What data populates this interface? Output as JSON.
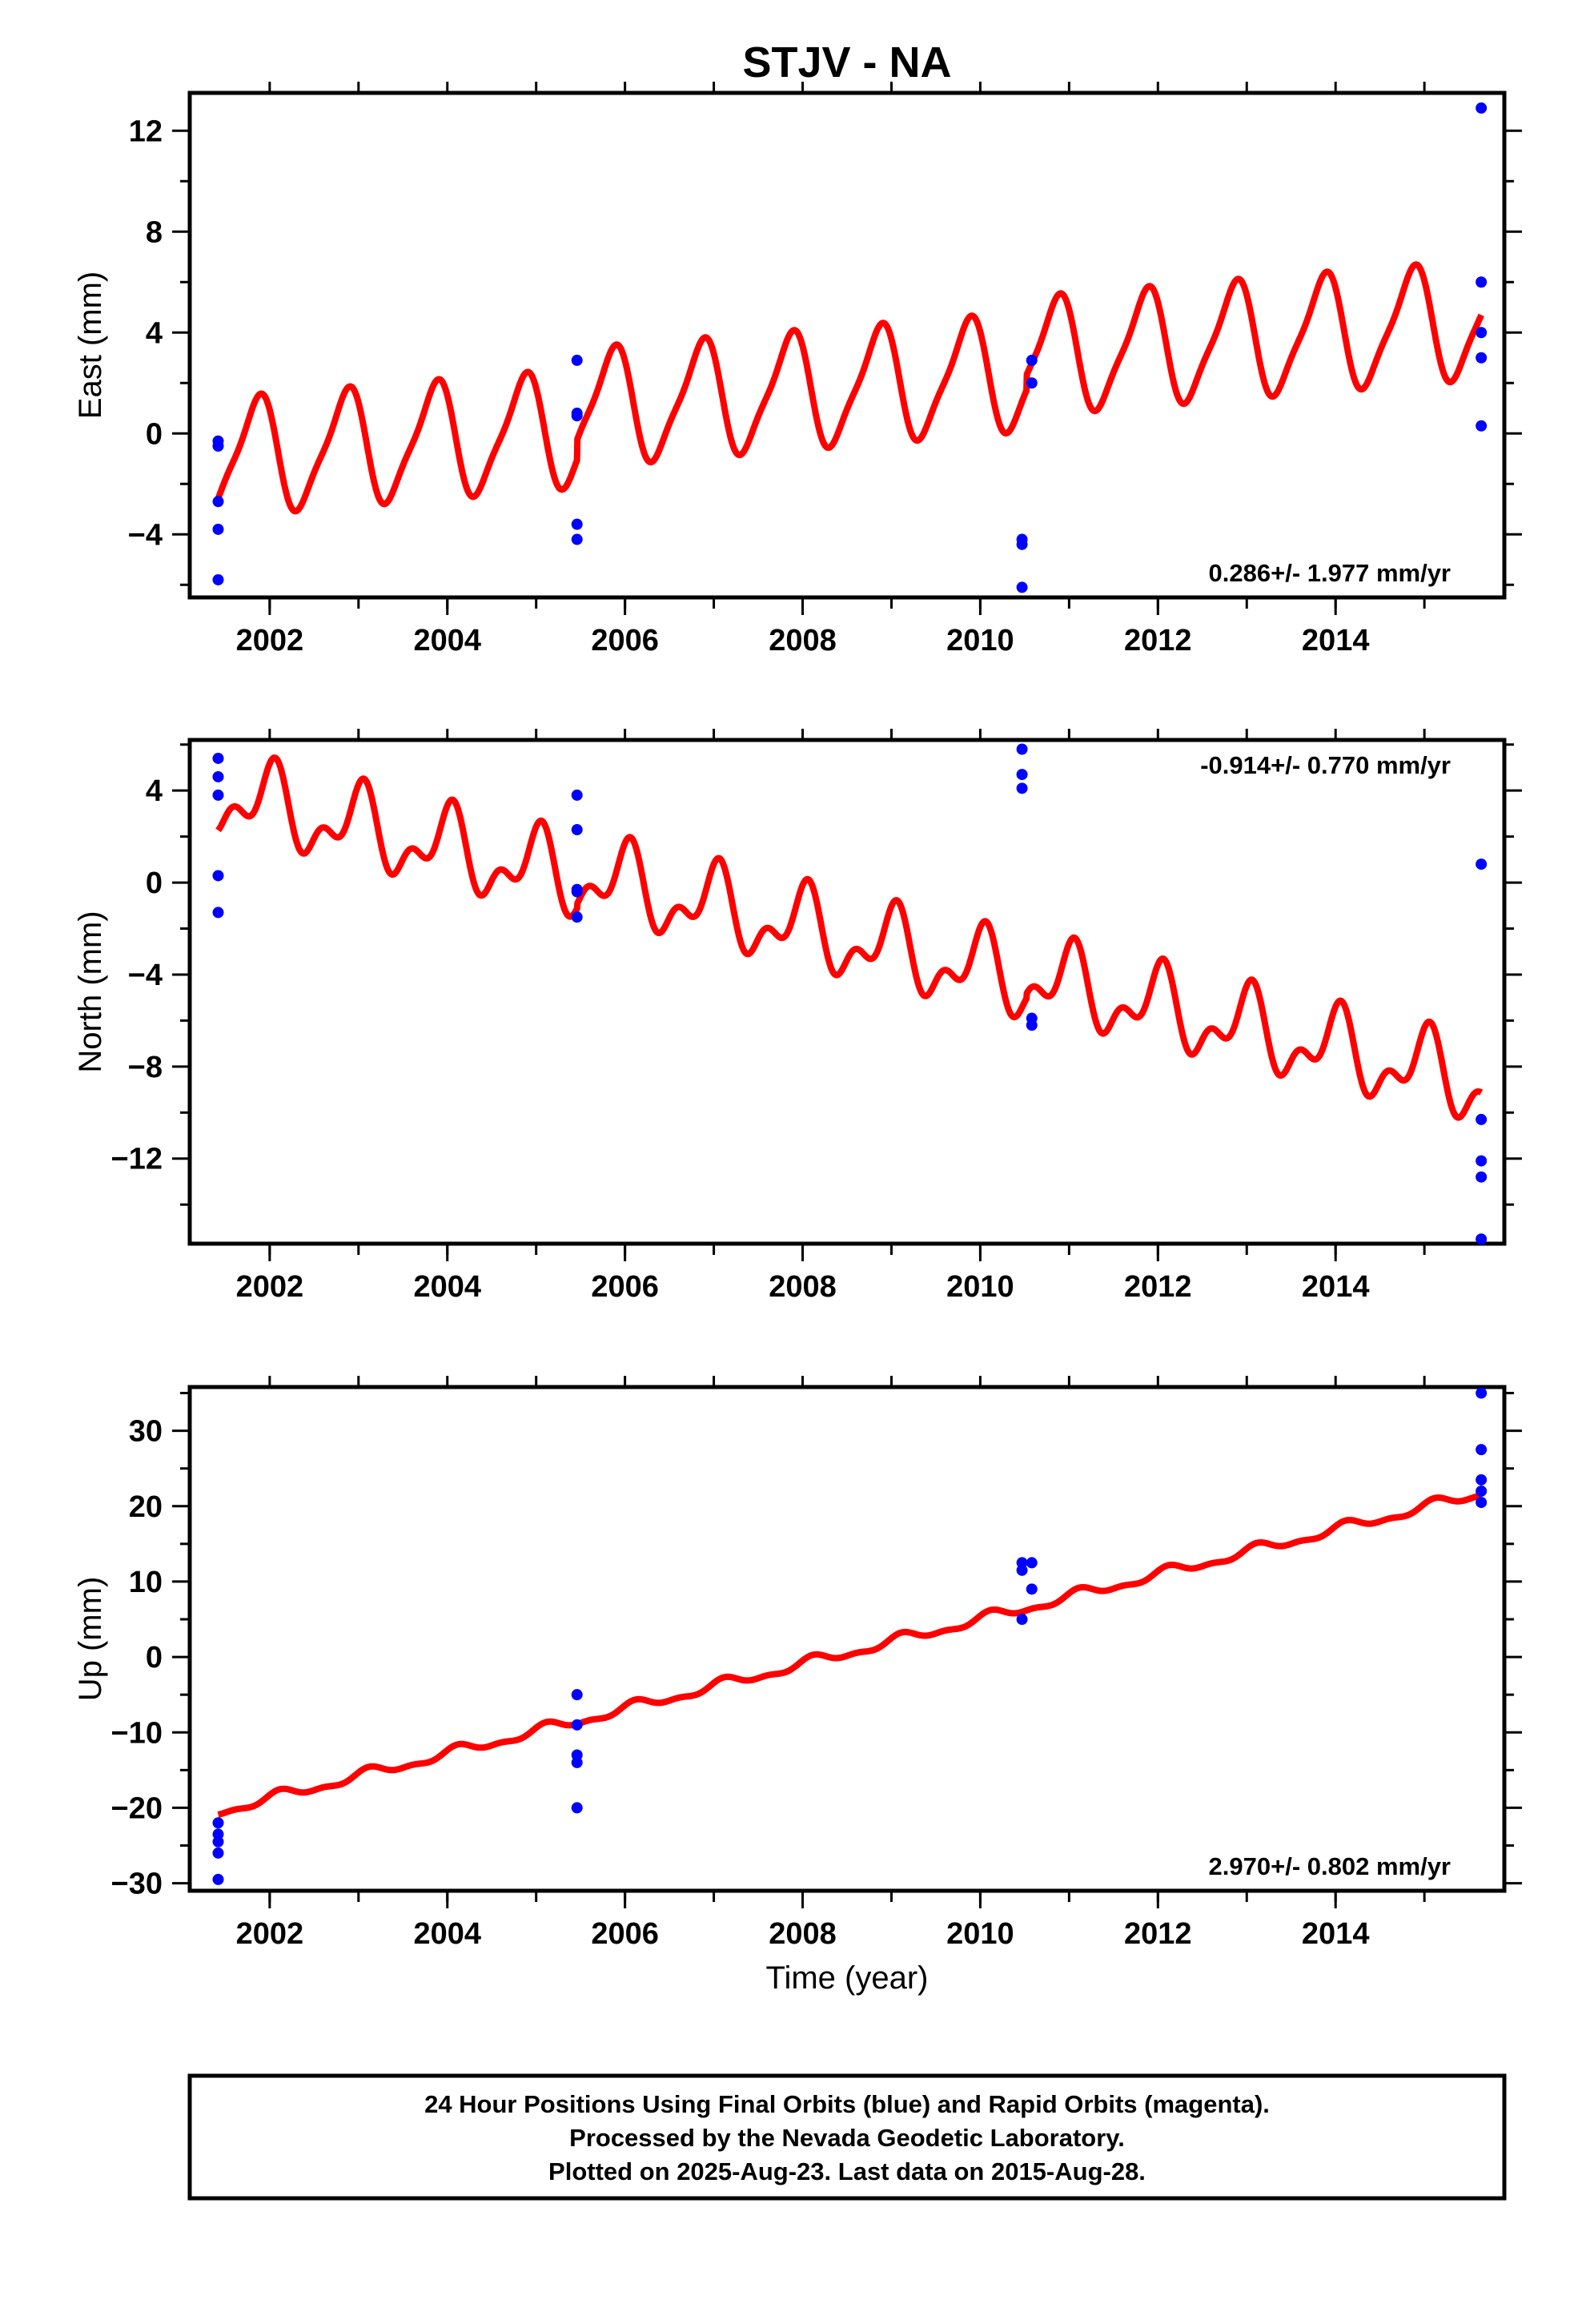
{
  "title": "STJV - NA",
  "x_axis": {
    "label": "Time (year)",
    "range": [
      2001.1,
      2015.9
    ],
    "ticks": [
      2002,
      2004,
      2006,
      2008,
      2010,
      2012,
      2014
    ]
  },
  "colors": {
    "fit": "#ff0000",
    "points": "#0000ff",
    "frame": "#000000"
  },
  "footer": {
    "line1": "24 Hour Positions Using Final Orbits (blue) and Rapid Orbits (magenta).",
    "line2": "Processed by the Nevada Geodetic Laboratory.",
    "line3": "Plotted on 2025-Aug-23. Last data on 2015-Aug-28."
  },
  "chart_data": [
    {
      "type": "scatter",
      "id": "east",
      "ylabel": "East (mm)",
      "ylim": [
        -6.5,
        13.5
      ],
      "yticks": [
        -4,
        0,
        4,
        8,
        12
      ],
      "rate_label": "0.286+/- 1.977 mm/yr",
      "rate_position": "bottom-right",
      "points": [
        {
          "x": 2001.42,
          "y": -0.3
        },
        {
          "x": 2001.42,
          "y": -0.5
        },
        {
          "x": 2001.42,
          "y": -2.7
        },
        {
          "x": 2001.42,
          "y": -3.8
        },
        {
          "x": 2001.42,
          "y": -5.8
        },
        {
          "x": 2005.46,
          "y": 2.9
        },
        {
          "x": 2005.46,
          "y": 0.8
        },
        {
          "x": 2005.46,
          "y": 0.7
        },
        {
          "x": 2005.46,
          "y": -3.6
        },
        {
          "x": 2005.46,
          "y": -4.2
        },
        {
          "x": 2010.47,
          "y": -4.2
        },
        {
          "x": 2010.47,
          "y": -4.4
        },
        {
          "x": 2010.47,
          "y": -6.1
        },
        {
          "x": 2010.58,
          "y": 2.9
        },
        {
          "x": 2010.58,
          "y": 2.0
        },
        {
          "x": 2015.64,
          "y": 12.9
        },
        {
          "x": 2015.64,
          "y": 6.0
        },
        {
          "x": 2015.64,
          "y": 4.0
        },
        {
          "x": 2015.64,
          "y": 3.0
        },
        {
          "x": 2015.64,
          "y": 0.3
        }
      ],
      "fit": {
        "x_start": 2001.42,
        "x_end": 2015.64,
        "offset": -1.0,
        "trend": 0.286,
        "annual_amp": 2.2,
        "annual_phase": 2.5,
        "semi_amp": 0.5,
        "semi_phase": 2.0,
        "steps": [
          {
            "x": 2005.46,
            "dy": 0.8
          },
          {
            "x": 2010.52,
            "dy": 0.6
          }
        ]
      }
    },
    {
      "type": "scatter",
      "id": "north",
      "ylabel": "North (mm)",
      "ylim": [
        -15.7,
        6.2
      ],
      "yticks": [
        -12,
        -8,
        -4,
        0,
        4
      ],
      "rate_label": "-0.914+/- 0.770 mm/yr",
      "rate_position": "top-right",
      "points": [
        {
          "x": 2001.42,
          "y": 5.4
        },
        {
          "x": 2001.42,
          "y": 4.6
        },
        {
          "x": 2001.42,
          "y": 3.8
        },
        {
          "x": 2001.42,
          "y": 0.3
        },
        {
          "x": 2001.42,
          "y": -1.3
        },
        {
          "x": 2005.46,
          "y": 3.8
        },
        {
          "x": 2005.46,
          "y": 2.3
        },
        {
          "x": 2005.46,
          "y": -0.3
        },
        {
          "x": 2005.46,
          "y": -0.4
        },
        {
          "x": 2005.46,
          "y": -1.5
        },
        {
          "x": 2010.47,
          "y": 5.8
        },
        {
          "x": 2010.47,
          "y": 4.7
        },
        {
          "x": 2010.47,
          "y": 4.1
        },
        {
          "x": 2010.58,
          "y": -5.9
        },
        {
          "x": 2010.58,
          "y": -6.2
        },
        {
          "x": 2015.64,
          "y": 0.8
        },
        {
          "x": 2015.64,
          "y": -10.3
        },
        {
          "x": 2015.64,
          "y": -12.1
        },
        {
          "x": 2015.64,
          "y": -12.8
        },
        {
          "x": 2015.64,
          "y": -15.5
        }
      ],
      "fit": {
        "x_start": 2001.42,
        "x_end": 2015.64,
        "offset": 3.8,
        "trend": -0.914,
        "annual_amp": 1.4,
        "annual_phase": 1.5,
        "semi_amp": 0.9,
        "semi_phase": 0.6,
        "steps": [
          {
            "x": 2005.46,
            "dy": 0.2
          },
          {
            "x": 2010.52,
            "dy": 0.2
          }
        ]
      }
    },
    {
      "type": "scatter",
      "id": "up",
      "ylabel": "Up (mm)",
      "ylim": [
        -31,
        35.8
      ],
      "yticks": [
        -30,
        -20,
        -10,
        0,
        10,
        20,
        30
      ],
      "rate_label": "2.970+/- 0.802 mm/yr",
      "rate_position": "bottom-right",
      "points": [
        {
          "x": 2001.42,
          "y": -22.0
        },
        {
          "x": 2001.42,
          "y": -23.5
        },
        {
          "x": 2001.42,
          "y": -24.5
        },
        {
          "x": 2001.42,
          "y": -26.0
        },
        {
          "x": 2001.42,
          "y": -29.5
        },
        {
          "x": 2005.46,
          "y": -5.0
        },
        {
          "x": 2005.46,
          "y": -9.0
        },
        {
          "x": 2005.46,
          "y": -13.0
        },
        {
          "x": 2005.46,
          "y": -14.0
        },
        {
          "x": 2005.46,
          "y": -20.0
        },
        {
          "x": 2010.47,
          "y": 12.5
        },
        {
          "x": 2010.47,
          "y": 11.5
        },
        {
          "x": 2010.47,
          "y": 5.0
        },
        {
          "x": 2010.58,
          "y": 12.5
        },
        {
          "x": 2010.58,
          "y": 9.0
        },
        {
          "x": 2015.64,
          "y": 35.0
        },
        {
          "x": 2015.64,
          "y": 27.5
        },
        {
          "x": 2015.64,
          "y": 23.5
        },
        {
          "x": 2015.64,
          "y": 22.0
        },
        {
          "x": 2015.64,
          "y": 20.5
        }
      ],
      "fit": {
        "x_start": 2001.42,
        "x_end": 2015.64,
        "offset": -20.5,
        "trend": 2.97,
        "annual_amp": 0.6,
        "annual_phase": 0.8,
        "semi_amp": 0.3,
        "semi_phase": 0.2,
        "steps": [
          {
            "x": 2005.46,
            "dy": 0.0
          },
          {
            "x": 2010.52,
            "dy": 0.0
          }
        ]
      }
    }
  ]
}
